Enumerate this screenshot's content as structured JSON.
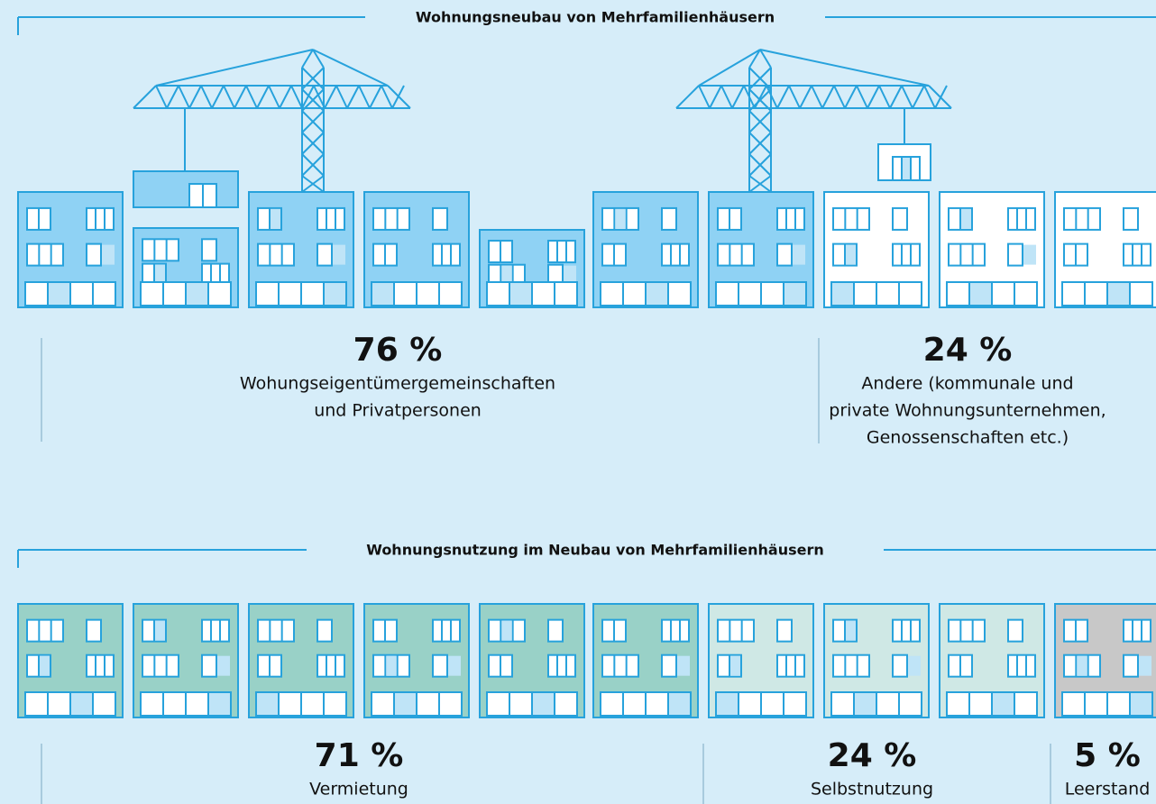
{
  "sections": [
    {
      "title": "Wohnungsneubau von Mehrfamilienhäusern",
      "groups": [
        {
          "value": "76 %",
          "label": [
            "Wohungseigentümergemeinschaften",
            "und Privatpersonen"
          ]
        },
        {
          "value": "24 %",
          "label": [
            "Andere (kommunale und",
            "private Wohnungsunternehmen,",
            "Genossenschaften etc.)"
          ]
        }
      ]
    },
    {
      "title": "Wohnungsnutzung im Neubau von Mehrfamilienhäusern",
      "groups": [
        {
          "value": "71 %",
          "label": [
            "Vermietung"
          ]
        },
        {
          "value": "24 %",
          "label": [
            "Selbstnutzung"
          ]
        },
        {
          "value": "5 %",
          "label": [
            "Leerstand"
          ]
        }
      ]
    }
  ]
}
